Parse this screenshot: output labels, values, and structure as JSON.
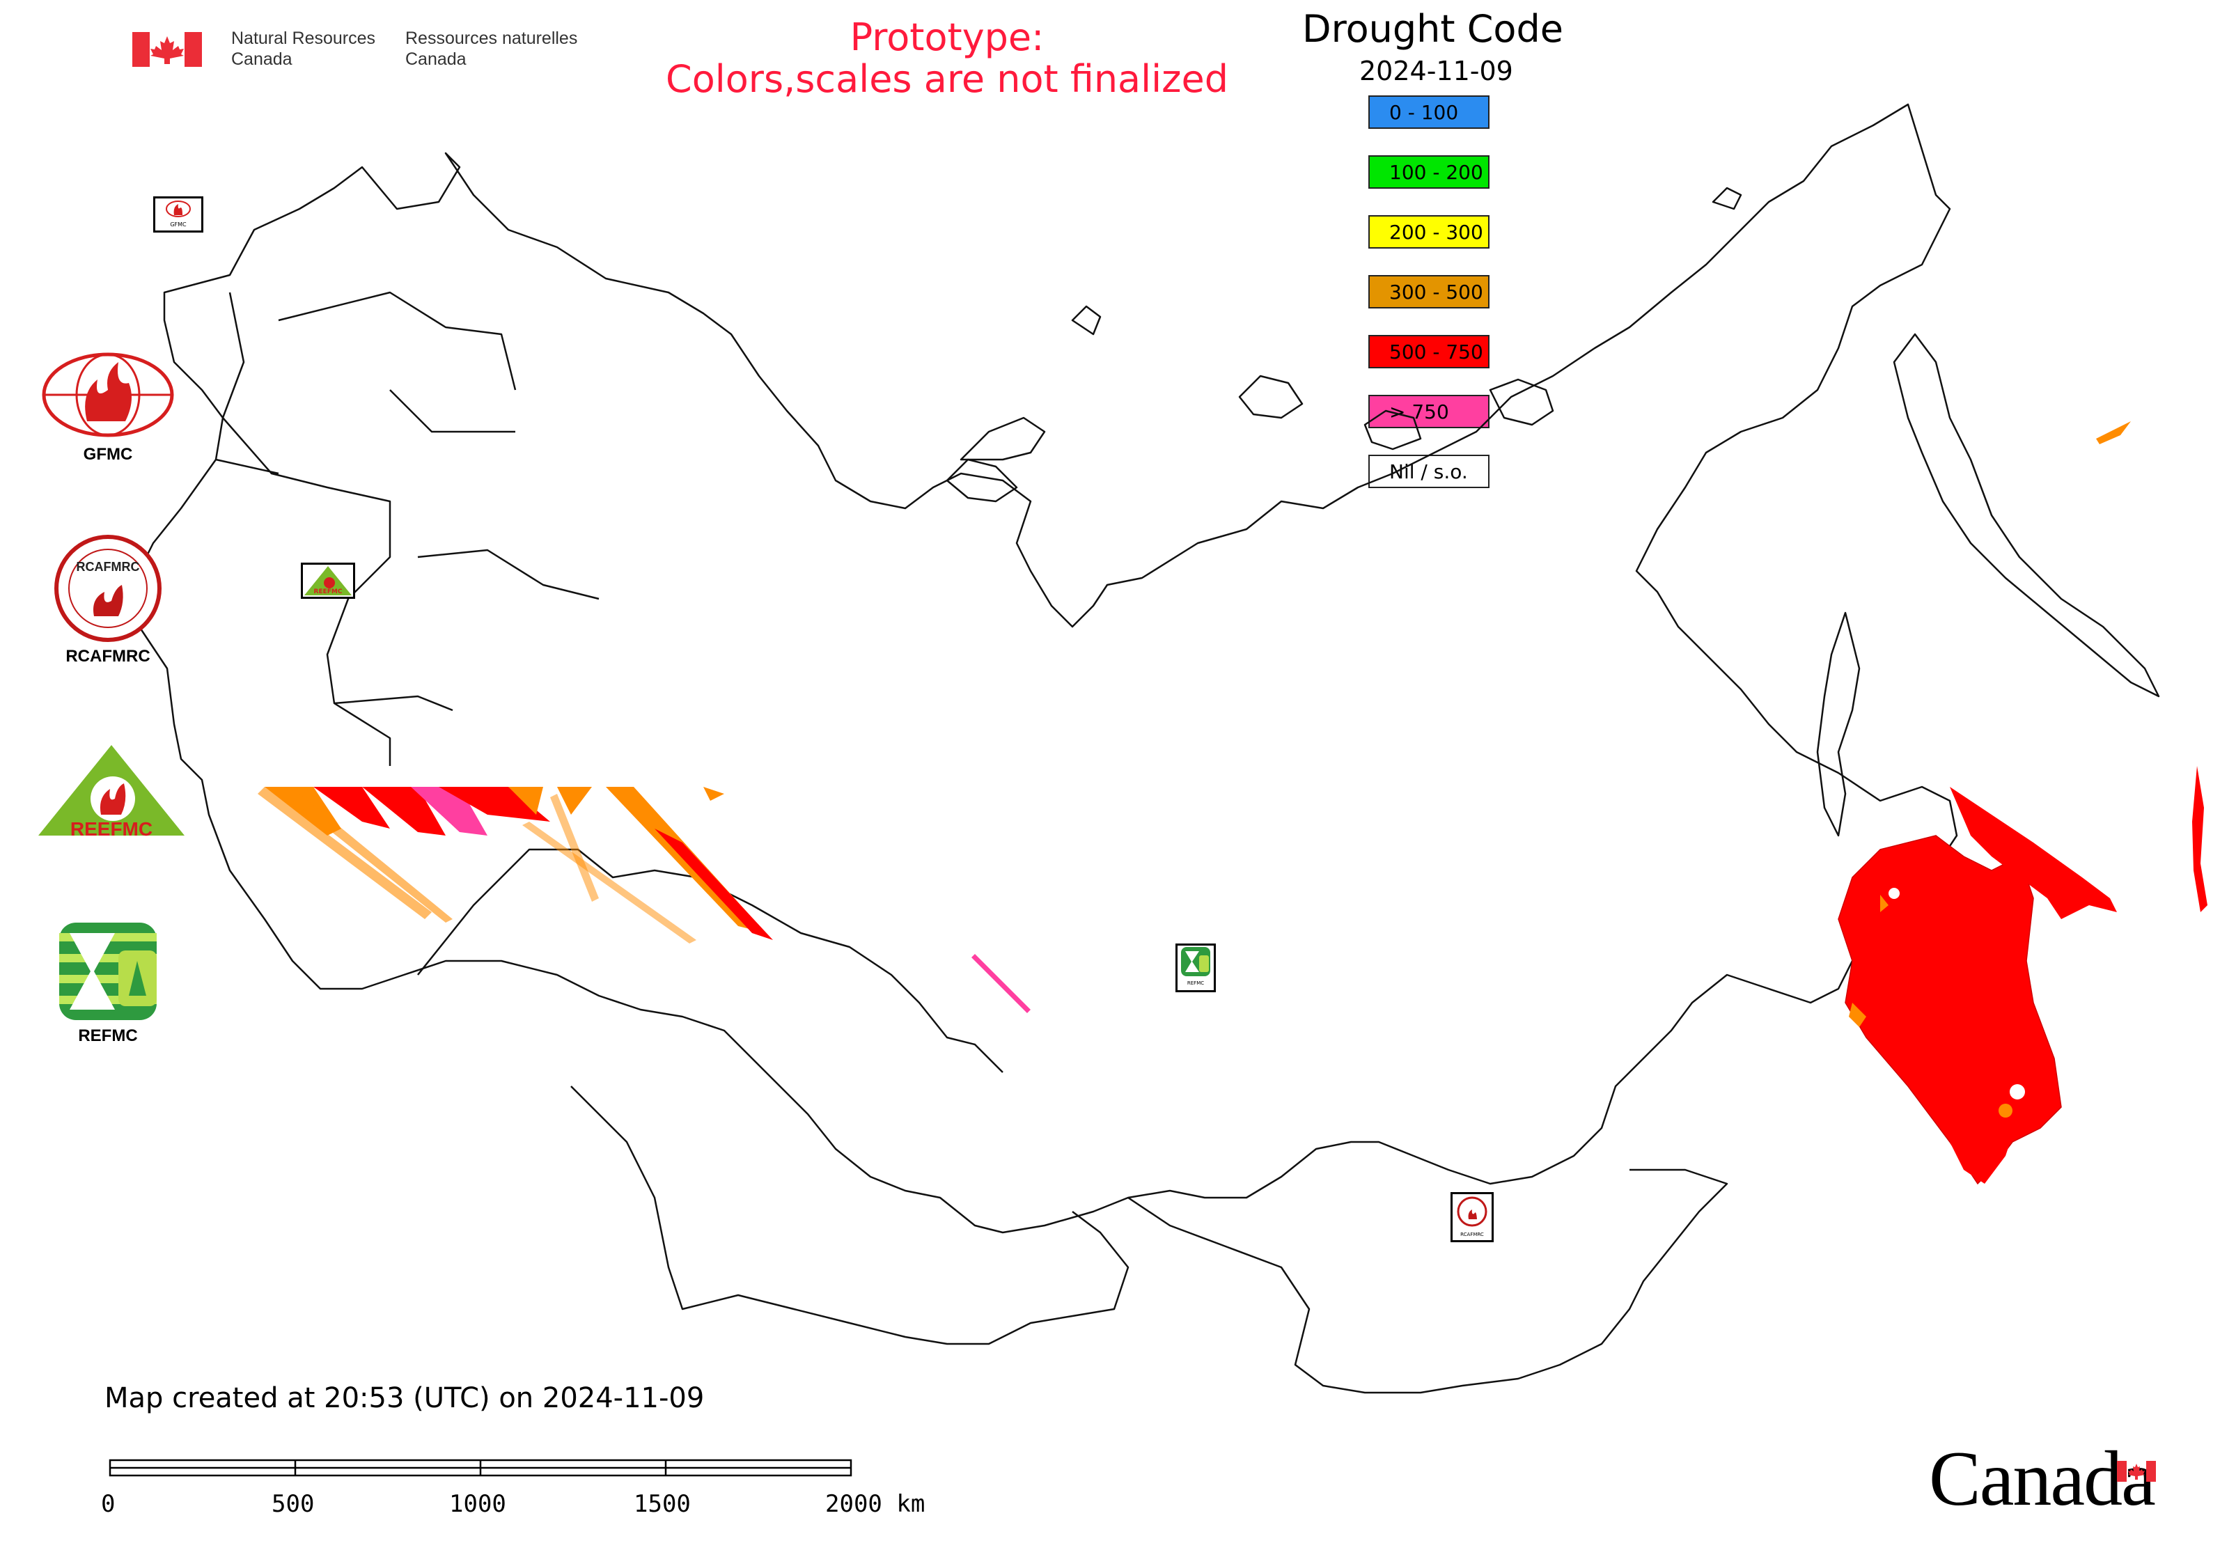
{
  "header": {
    "nrcan_en": [
      "Natural Resources",
      "Canada"
    ],
    "nrcan_fr": [
      "Ressources naturelles",
      "Canada"
    ],
    "prototype_line1": "Prototype:",
    "prototype_line2": "Colors,scales are not finalized"
  },
  "map": {
    "title": "Drought Code",
    "date": "2024-11-09",
    "legend": [
      {
        "label": "0 - 100",
        "color": "#2b8cf0"
      },
      {
        "label": "100 - 200",
        "color": "#00e600"
      },
      {
        "label": "200 - 300",
        "color": "#ffff00"
      },
      {
        "label": "300 - 500",
        "color": "#e39400"
      },
      {
        "label": "500 - 750",
        "color": "#ff0000"
      },
      {
        "label": "> 750",
        "color": "#ff3fa0"
      },
      {
        "label": "Nil / s.o.",
        "color": "#ffffff"
      }
    ]
  },
  "logos": {
    "gfmc": "GFMC",
    "rcafmrc": "RCAFMRC",
    "rcafmrc_inner": "RCAFMRC",
    "reefmc": "REEFMC",
    "refmc": "REFMC",
    "marker_gfmc": "GFMC",
    "marker_reefmc": "REEFMC",
    "marker_refmc": "REFMC",
    "marker_rcafmrc": "RCAFMRC"
  },
  "footer": {
    "created": "Map created at 20:53 (UTC) on 2024-11-09",
    "scale_labels": [
      "0",
      "500",
      "1000",
      "1500",
      "2000 km"
    ],
    "wordmark": "Canada"
  }
}
